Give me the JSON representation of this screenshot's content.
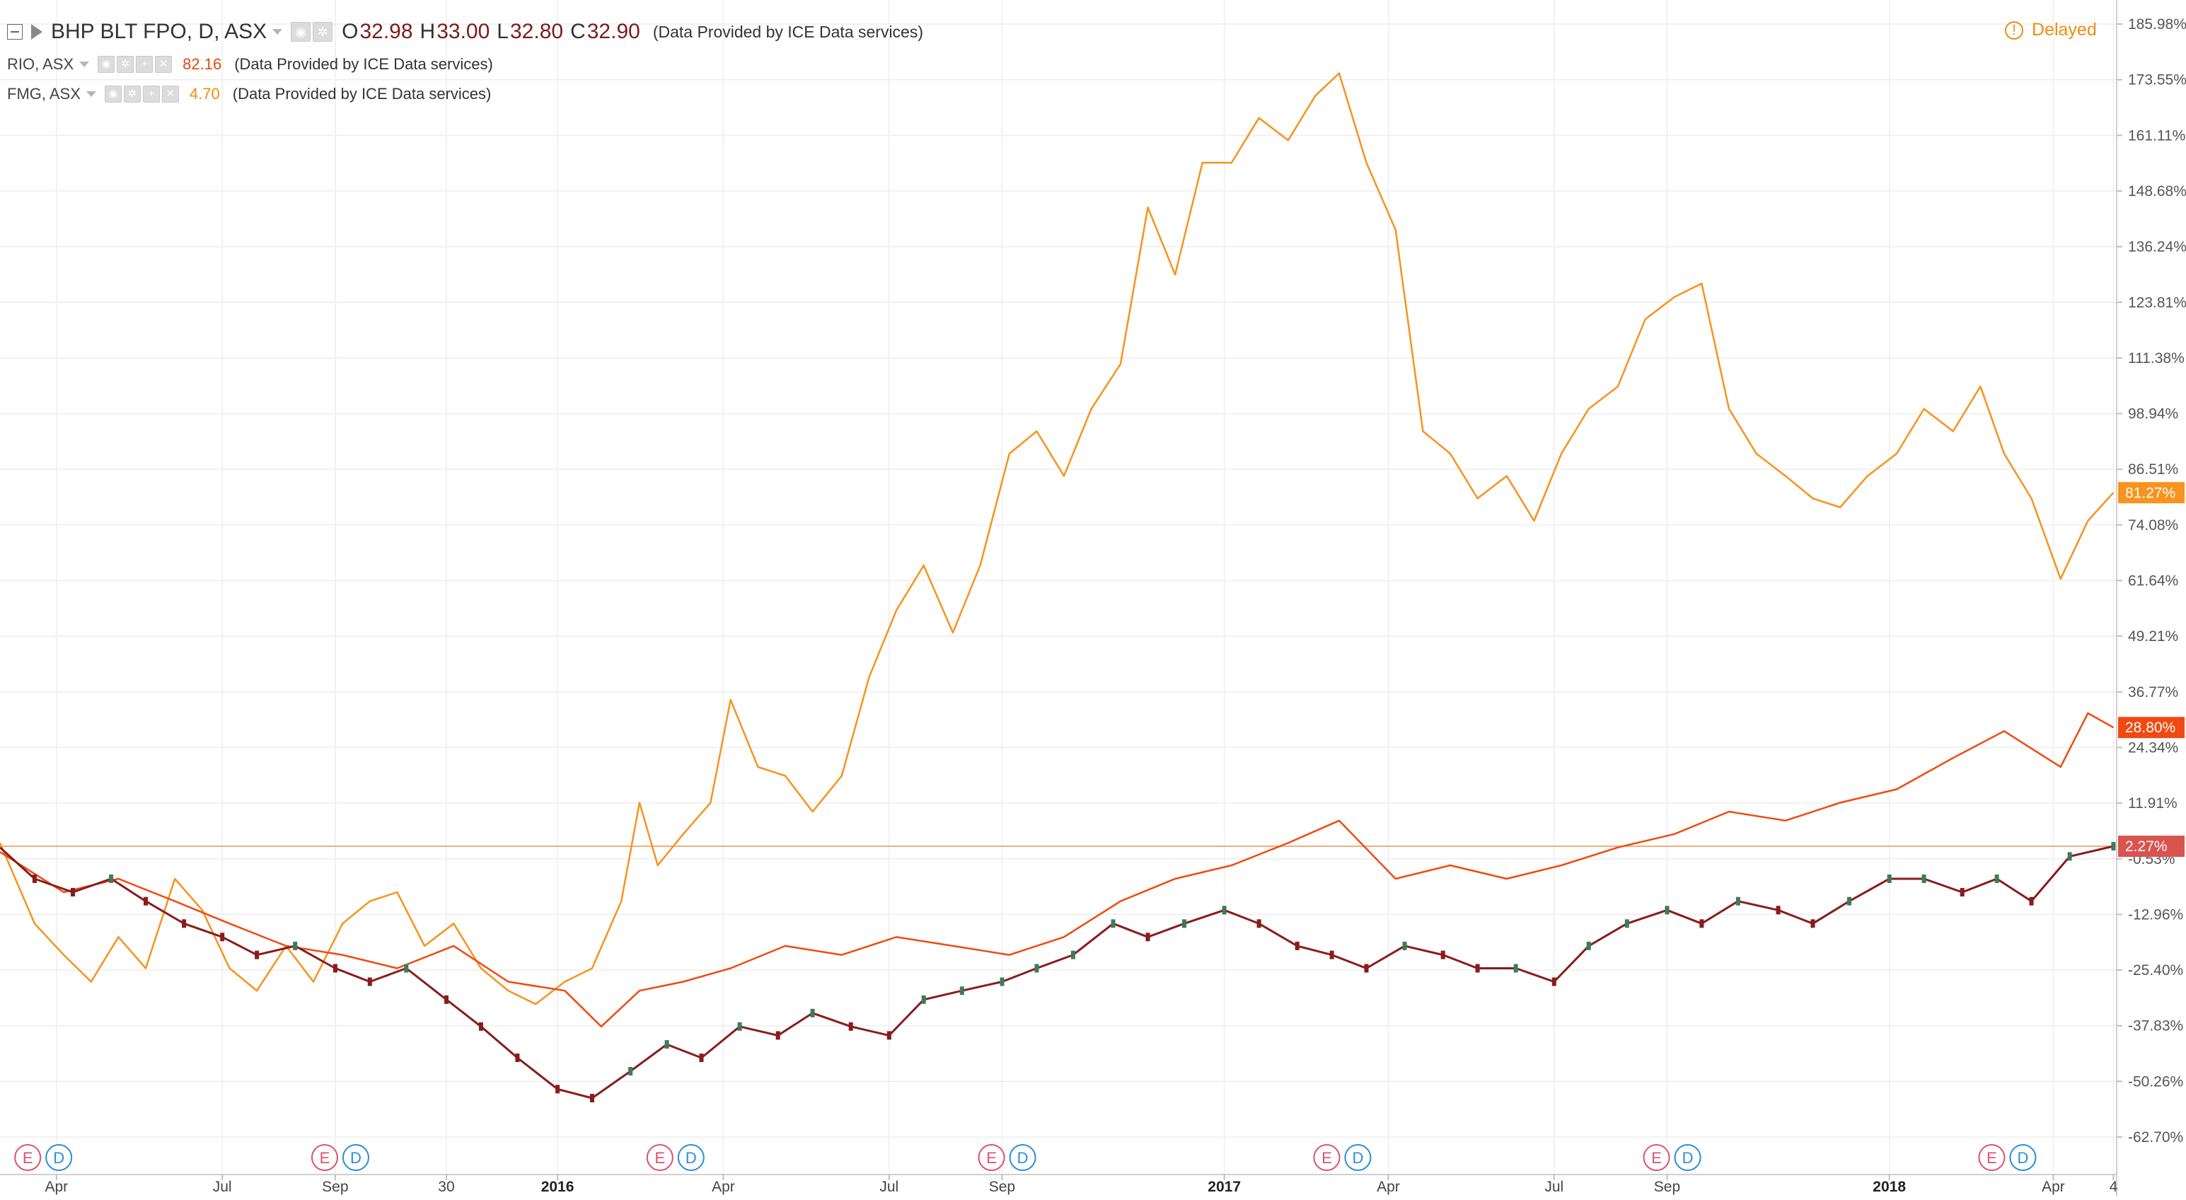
{
  "header": {
    "main": {
      "symbol": "BHP BLT FPO, D, ASX",
      "o_label": "O",
      "o": "32.98",
      "h_label": "H",
      "h": "33.00",
      "l_label": "L",
      "l": "32.80",
      "c_label": "C",
      "c": "32.90",
      "provider": "(Data Provided by ICE Data services)"
    },
    "rio": {
      "symbol": "RIO, ASX",
      "value": "82.16",
      "provider": "(Data Provided by ICE Data services)"
    },
    "fmg": {
      "symbol": "FMG, ASX",
      "value": "4.70",
      "provider": "(Data Provided by ICE Data services)"
    },
    "delayed": "Delayed",
    "delayed_icon": "!"
  },
  "colors": {
    "bhp": "#8a1c1c",
    "bhp_up": "#3a7d5c",
    "rio": "#f04a12",
    "fmg": "#f7931e",
    "grid": "#eeeeee",
    "axis_text": "#555555",
    "base_line": "#f0b080",
    "marker_e": "#e05070",
    "marker_d": "#2a8ed8"
  },
  "chart_data": {
    "type": "line",
    "title": "",
    "xlabel": "",
    "ylabel": "",
    "x_start": "2015-03-01",
    "x_end": "2018-05-05",
    "ylim": [
      -68,
      190
    ],
    "y_ticks": [
      "185.98%",
      "173.55%",
      "161.11%",
      "148.68%",
      "136.24%",
      "123.81%",
      "111.38%",
      "98.94%",
      "86.51%",
      "74.08%",
      "61.64%",
      "49.21%",
      "36.77%",
      "24.34%",
      "11.91%",
      "-0.53%",
      "-12.96%",
      "-25.40%",
      "-37.83%",
      "-50.26%",
      "-62.70%"
    ],
    "x_ticks": [
      {
        "date": "2015-04-01",
        "label": "Apr",
        "bold": false
      },
      {
        "date": "2015-07-01",
        "label": "Jul",
        "bold": false
      },
      {
        "date": "2015-09-01",
        "label": "Sep",
        "bold": false
      },
      {
        "date": "2015-11-01",
        "label": "30",
        "bold": false
      },
      {
        "date": "2016-01-01",
        "label": "2016",
        "bold": true
      },
      {
        "date": "2016-04-01",
        "label": "Apr",
        "bold": false
      },
      {
        "date": "2016-07-01",
        "label": "Jul",
        "bold": false
      },
      {
        "date": "2016-09-01",
        "label": "Sep",
        "bold": false
      },
      {
        "date": "2017-01-01",
        "label": "2017",
        "bold": true
      },
      {
        "date": "2017-04-01",
        "label": "Apr",
        "bold": false
      },
      {
        "date": "2017-07-01",
        "label": "Jul",
        "bold": false
      },
      {
        "date": "2017-09-01",
        "label": "Sep",
        "bold": false
      },
      {
        "date": "2018-01-01",
        "label": "2018",
        "bold": true
      },
      {
        "date": "2018-04-01",
        "label": "Apr",
        "bold": false
      },
      {
        "date": "2018-05-04",
        "label": "4",
        "bold": false
      }
    ],
    "last_tags": [
      {
        "series": "FMG, ASX",
        "label": "81.27%",
        "value": 81.27
      },
      {
        "series": "RIO, ASX",
        "label": "28.80%",
        "value": 28.8
      },
      {
        "series": "BHP BLT FPO, D, ASX",
        "label": "2.27%",
        "value": 2.27
      }
    ],
    "base_value": 2.27,
    "event_markers": {
      "e_label": "E",
      "d_label": "D",
      "dates": [
        "2015-03-10",
        "2015-08-20",
        "2016-02-20",
        "2016-08-20",
        "2017-02-20",
        "2017-08-20",
        "2018-02-20"
      ]
    },
    "series": [
      {
        "name": "FMG, ASX",
        "x": [
          "2015-03-01",
          "2015-03-20",
          "2015-04-05",
          "2015-04-20",
          "2015-05-05",
          "2015-05-20",
          "2015-06-05",
          "2015-06-20",
          "2015-07-05",
          "2015-07-20",
          "2015-08-05",
          "2015-08-20",
          "2015-09-05",
          "2015-09-20",
          "2015-10-05",
          "2015-10-20",
          "2015-11-05",
          "2015-11-20",
          "2015-12-05",
          "2015-12-20",
          "2016-01-05",
          "2016-01-20",
          "2016-02-05",
          "2016-02-15",
          "2016-02-25",
          "2016-03-10",
          "2016-03-25",
          "2016-04-05",
          "2016-04-20",
          "2016-05-05",
          "2016-05-20",
          "2016-06-05",
          "2016-06-20",
          "2016-07-05",
          "2016-07-20",
          "2016-08-05",
          "2016-08-20",
          "2016-09-05",
          "2016-09-20",
          "2016-10-05",
          "2016-10-20",
          "2016-11-05",
          "2016-11-20",
          "2016-12-05",
          "2016-12-20",
          "2017-01-05",
          "2017-01-20",
          "2017-02-05",
          "2017-02-20",
          "2017-03-05",
          "2017-03-20",
          "2017-04-05",
          "2017-04-20",
          "2017-05-05",
          "2017-05-20",
          "2017-06-05",
          "2017-06-20",
          "2017-07-05",
          "2017-07-20",
          "2017-08-05",
          "2017-08-20",
          "2017-09-05",
          "2017-09-20",
          "2017-10-05",
          "2017-10-20",
          "2017-11-05",
          "2017-11-20",
          "2017-12-05",
          "2017-12-20",
          "2018-01-05",
          "2018-01-20",
          "2018-02-05",
          "2018-02-20",
          "2018-03-05",
          "2018-03-20",
          "2018-04-05",
          "2018-04-20",
          "2018-05-04"
        ],
        "y": [
          3,
          -15,
          -22,
          -28,
          -18,
          -25,
          -5,
          -12,
          -25,
          -30,
          -20,
          -28,
          -15,
          -10,
          -8,
          -20,
          -15,
          -25,
          -30,
          -33,
          -28,
          -25,
          -10,
          12,
          -2,
          5,
          12,
          35,
          20,
          18,
          10,
          18,
          40,
          55,
          65,
          50,
          65,
          90,
          95,
          85,
          100,
          110,
          145,
          130,
          155,
          155,
          165,
          160,
          170,
          175,
          155,
          140,
          95,
          90,
          80,
          85,
          75,
          90,
          100,
          105,
          120,
          125,
          128,
          100,
          90,
          85,
          80,
          78,
          85,
          90,
          100,
          95,
          105,
          90,
          80,
          62,
          75,
          81.27
        ]
      },
      {
        "name": "RIO, ASX",
        "x": [
          "2015-03-01",
          "2015-04-05",
          "2015-05-05",
          "2015-06-05",
          "2015-07-05",
          "2015-08-05",
          "2015-09-05",
          "2015-10-05",
          "2015-11-05",
          "2015-12-05",
          "2016-01-05",
          "2016-01-25",
          "2016-02-15",
          "2016-03-10",
          "2016-04-05",
          "2016-05-05",
          "2016-06-05",
          "2016-07-05",
          "2016-08-05",
          "2016-09-05",
          "2016-10-05",
          "2016-11-05",
          "2016-12-05",
          "2017-01-05",
          "2017-02-05",
          "2017-03-05",
          "2017-04-05",
          "2017-05-05",
          "2017-06-05",
          "2017-07-05",
          "2017-08-05",
          "2017-09-05",
          "2017-10-05",
          "2017-11-05",
          "2017-12-05",
          "2018-01-05",
          "2018-02-05",
          "2018-03-05",
          "2018-04-05",
          "2018-04-20",
          "2018-05-04"
        ],
        "y": [
          1,
          -8,
          -5,
          -10,
          -15,
          -20,
          -22,
          -25,
          -20,
          -28,
          -30,
          -38,
          -30,
          -28,
          -25,
          -20,
          -22,
          -18,
          -20,
          -22,
          -18,
          -10,
          -5,
          -2,
          3,
          8,
          -5,
          -2,
          -5,
          -2,
          2,
          5,
          10,
          8,
          12,
          15,
          22,
          28,
          20,
          32,
          28.8
        ]
      },
      {
        "name": "BHP BLT FPO, D, ASX",
        "x": [
          "2015-03-01",
          "2015-03-20",
          "2015-04-10",
          "2015-05-01",
          "2015-05-20",
          "2015-06-10",
          "2015-07-01",
          "2015-07-20",
          "2015-08-10",
          "2015-09-01",
          "2015-09-20",
          "2015-10-10",
          "2015-11-01",
          "2015-11-20",
          "2015-12-10",
          "2016-01-01",
          "2016-01-20",
          "2016-02-10",
          "2016-03-01",
          "2016-03-20",
          "2016-04-10",
          "2016-05-01",
          "2016-05-20",
          "2016-06-10",
          "2016-07-01",
          "2016-07-20",
          "2016-08-10",
          "2016-09-01",
          "2016-09-20",
          "2016-10-10",
          "2016-11-01",
          "2016-11-20",
          "2016-12-10",
          "2017-01-01",
          "2017-01-20",
          "2017-02-10",
          "2017-03-01",
          "2017-03-20",
          "2017-04-10",
          "2017-05-01",
          "2017-05-20",
          "2017-06-10",
          "2017-07-01",
          "2017-07-20",
          "2017-08-10",
          "2017-09-01",
          "2017-09-20",
          "2017-10-10",
          "2017-11-01",
          "2017-11-20",
          "2017-12-10",
          "2018-01-01",
          "2018-01-20",
          "2018-02-10",
          "2018-03-01",
          "2018-03-20",
          "2018-04-10",
          "2018-05-04"
        ],
        "y": [
          2,
          -5,
          -8,
          -5,
          -10,
          -15,
          -18,
          -22,
          -20,
          -25,
          -28,
          -25,
          -32,
          -38,
          -45,
          -52,
          -54,
          -48,
          -42,
          -45,
          -38,
          -40,
          -35,
          -38,
          -40,
          -32,
          -30,
          -28,
          -25,
          -22,
          -15,
          -18,
          -15,
          -12,
          -15,
          -20,
          -22,
          -25,
          -20,
          -22,
          -25,
          -25,
          -28,
          -20,
          -15,
          -12,
          -15,
          -10,
          -12,
          -15,
          -10,
          -5,
          -5,
          -8,
          -5,
          -10,
          0,
          2.27
        ]
      }
    ]
  }
}
